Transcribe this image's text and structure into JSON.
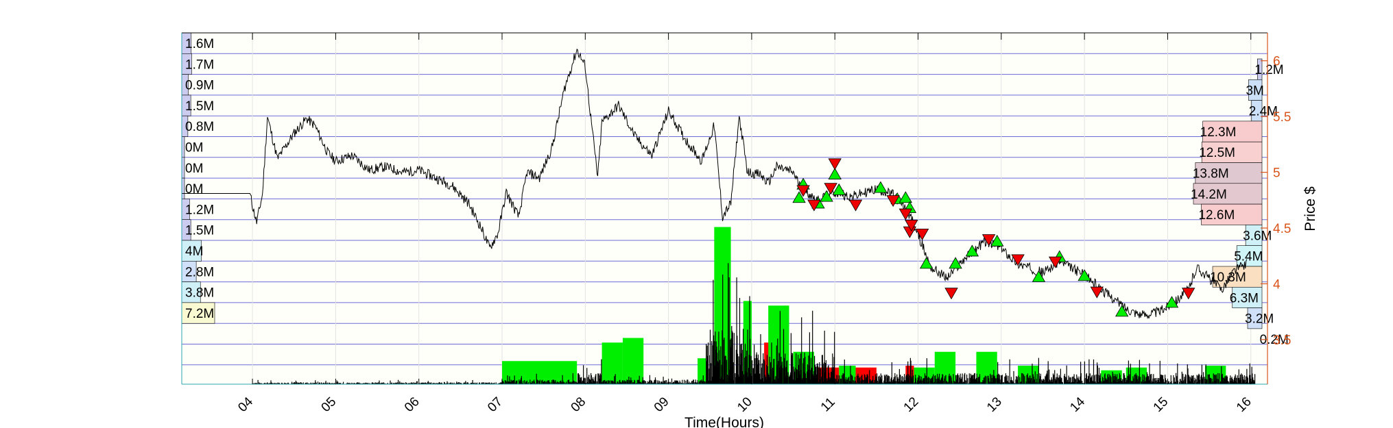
{
  "chart_data": {
    "type": "line",
    "xlabel": "Time(Hours)",
    "ylabel": "Price $",
    "x_ticks": [
      "04",
      "05",
      "06",
      "07",
      "08",
      "09",
      "10",
      "11",
      "12",
      "13",
      "14",
      "15",
      "16"
    ],
    "x_range": [
      3.15,
      16.2
    ],
    "ylim": [
      3.1,
      6.25
    ],
    "y_ticks": [
      3.5,
      4,
      4.5,
      5,
      5.5,
      6
    ],
    "price_axis_color": "#d95319",
    "grid": true,
    "price_series": [
      [
        3.15,
        4.81
      ],
      [
        3.97,
        4.81
      ],
      [
        4.0,
        4.7
      ],
      [
        4.05,
        4.55
      ],
      [
        4.12,
        4.8
      ],
      [
        4.18,
        5.5
      ],
      [
        4.3,
        5.12
      ],
      [
        4.5,
        5.35
      ],
      [
        4.65,
        5.48
      ],
      [
        4.75,
        5.42
      ],
      [
        4.9,
        5.18
      ],
      [
        5.0,
        5.1
      ],
      [
        5.2,
        5.15
      ],
      [
        5.4,
        5.02
      ],
      [
        5.6,
        5.05
      ],
      [
        5.8,
        5.0
      ],
      [
        6.0,
        5.02
      ],
      [
        6.2,
        4.95
      ],
      [
        6.4,
        4.88
      ],
      [
        6.6,
        4.72
      ],
      [
        6.75,
        4.5
      ],
      [
        6.85,
        4.32
      ],
      [
        6.95,
        4.45
      ],
      [
        7.05,
        4.82
      ],
      [
        7.2,
        4.6
      ],
      [
        7.3,
        5.0
      ],
      [
        7.45,
        4.95
      ],
      [
        7.6,
        5.22
      ],
      [
        7.75,
        5.75
      ],
      [
        7.9,
        6.1
      ],
      [
        8.0,
        5.95
      ],
      [
        8.05,
        5.6
      ],
      [
        8.15,
        4.95
      ],
      [
        8.2,
        5.45
      ],
      [
        8.4,
        5.6
      ],
      [
        8.6,
        5.32
      ],
      [
        8.8,
        5.15
      ],
      [
        9.0,
        5.55
      ],
      [
        9.2,
        5.3
      ],
      [
        9.4,
        5.1
      ],
      [
        9.55,
        5.42
      ],
      [
        9.65,
        4.6
      ],
      [
        9.75,
        4.72
      ],
      [
        9.85,
        5.5
      ],
      [
        9.95,
        5.0
      ],
      [
        10.1,
        4.98
      ],
      [
        10.2,
        4.9
      ],
      [
        10.3,
        5.05
      ],
      [
        10.5,
        5.0
      ],
      [
        10.6,
        4.85
      ],
      [
        10.8,
        4.75
      ],
      [
        11.0,
        4.82
      ],
      [
        11.2,
        4.78
      ],
      [
        11.5,
        4.85
      ],
      [
        11.7,
        4.8
      ],
      [
        11.9,
        4.62
      ],
      [
        12.05,
        4.35
      ],
      [
        12.15,
        4.15
      ],
      [
        12.35,
        4.05
      ],
      [
        12.55,
        4.22
      ],
      [
        12.8,
        4.38
      ],
      [
        13.0,
        4.32
      ],
      [
        13.2,
        4.18
      ],
      [
        13.5,
        4.1
      ],
      [
        13.7,
        4.2
      ],
      [
        14.0,
        4.08
      ],
      [
        14.2,
        3.95
      ],
      [
        14.5,
        3.78
      ],
      [
        14.7,
        3.72
      ],
      [
        14.9,
        3.75
      ],
      [
        15.1,
        3.85
      ],
      [
        15.25,
        3.95
      ],
      [
        15.35,
        4.15
      ],
      [
        15.5,
        4.05
      ],
      [
        15.65,
        3.95
      ],
      [
        15.8,
        4.12
      ],
      [
        15.95,
        4.18
      ]
    ],
    "trade_volume_bars": [
      {
        "x0": 7.0,
        "x1": 7.9,
        "volume": 0.25,
        "color": "#00ee00"
      },
      {
        "x0": 8.2,
        "x1": 8.45,
        "volume": 0.45,
        "color": "#00ee00"
      },
      {
        "x0": 8.45,
        "x1": 8.7,
        "volume": 0.5,
        "color": "#00ee00"
      },
      {
        "x0": 9.35,
        "x1": 9.45,
        "volume": 0.28,
        "color": "#00ee00"
      },
      {
        "x0": 9.55,
        "x1": 9.75,
        "volume": 1.7,
        "color": "#00ee00"
      },
      {
        "x0": 9.9,
        "x1": 10.0,
        "volume": 0.9,
        "color": "#00ee00"
      },
      {
        "x0": 10.15,
        "x1": 10.25,
        "volume": 0.45,
        "color": "#ff0000"
      },
      {
        "x0": 10.2,
        "x1": 10.45,
        "volume": 0.85,
        "color": "#00ee00"
      },
      {
        "x0": 10.5,
        "x1": 10.75,
        "volume": 0.35,
        "color": "#00ee00"
      },
      {
        "x0": 10.8,
        "x1": 11.05,
        "volume": 0.18,
        "color": "#ff0000"
      },
      {
        "x0": 11.05,
        "x1": 11.25,
        "volume": 0.2,
        "color": "#00ee00"
      },
      {
        "x0": 11.25,
        "x1": 11.5,
        "volume": 0.18,
        "color": "#ff0000"
      },
      {
        "x0": 11.85,
        "x1": 11.95,
        "volume": 0.2,
        "color": "#ff0000"
      },
      {
        "x0": 11.95,
        "x1": 12.2,
        "volume": 0.18,
        "color": "#00ee00"
      },
      {
        "x0": 12.2,
        "x1": 12.45,
        "volume": 0.35,
        "color": "#00ee00"
      },
      {
        "x0": 12.7,
        "x1": 12.95,
        "volume": 0.35,
        "color": "#00ee00"
      },
      {
        "x0": 13.2,
        "x1": 13.45,
        "volume": 0.2,
        "color": "#00ee00"
      },
      {
        "x0": 14.2,
        "x1": 14.45,
        "volume": 0.15,
        "color": "#00ee00"
      },
      {
        "x0": 14.5,
        "x1": 14.75,
        "volume": 0.18,
        "color": "#00ee00"
      },
      {
        "x0": 15.45,
        "x1": 15.7,
        "volume": 0.2,
        "color": "#00ee00"
      }
    ],
    "buy_markers": [
      [
        10.57,
        4.77
      ],
      [
        10.62,
        4.89
      ],
      [
        10.8,
        4.72
      ],
      [
        10.9,
        4.78
      ],
      [
        11.0,
        4.98
      ],
      [
        11.05,
        4.84
      ],
      [
        11.55,
        4.86
      ],
      [
        11.75,
        4.76
      ],
      [
        11.85,
        4.77
      ],
      [
        11.9,
        4.68
      ],
      [
        12.1,
        4.18
      ],
      [
        12.45,
        4.18
      ],
      [
        12.65,
        4.29
      ],
      [
        12.95,
        4.38
      ],
      [
        13.45,
        4.06
      ],
      [
        13.7,
        4.24
      ],
      [
        14.0,
        4.07
      ],
      [
        14.45,
        3.75
      ],
      [
        15.05,
        3.83
      ]
    ],
    "sell_markers": [
      [
        10.62,
        4.84
      ],
      [
        10.75,
        4.71
      ],
      [
        10.95,
        4.86
      ],
      [
        11.0,
        5.08
      ],
      [
        11.25,
        4.71
      ],
      [
        11.7,
        4.75
      ],
      [
        11.85,
        4.63
      ],
      [
        11.9,
        4.47
      ],
      [
        11.92,
        4.53
      ],
      [
        12.05,
        4.45
      ],
      [
        12.4,
        3.92
      ],
      [
        12.85,
        4.4
      ],
      [
        13.2,
        4.22
      ],
      [
        13.65,
        4.2
      ],
      [
        14.15,
        3.93
      ],
      [
        15.25,
        3.92
      ]
    ],
    "left_profile_labels": [
      "1.6M",
      "1.7M",
      "0.9M",
      "1.5M",
      "0.8M",
      "0M",
      "0M",
      "0M",
      "1.2M",
      "1.5M",
      "4M",
      "2.8M",
      "3.8M",
      "7.2M"
    ],
    "left_profile_values": [
      1.6,
      1.7,
      0.9,
      1.5,
      0.8,
      0,
      0,
      0,
      1.2,
      1.5,
      4,
      2.8,
      3.8,
      7.2
    ],
    "left_profile_colors": [
      "#ccccf0",
      "#ccccf0",
      "#ccccf0",
      "#ccccf0",
      "#ccccf0",
      "#ccccf0",
      "#ccccf0",
      "#ccccf0",
      "#ccccf0",
      "#ccccf0",
      "#d0f0f8",
      "#d0e0f8",
      "#d0f0f8",
      "#fafad2"
    ],
    "right_profile_labels": [
      "1.2M",
      "3M",
      "2.4M",
      "12.3M",
      "12.5M",
      "13.8M",
      "14.2M",
      "12.6M",
      "3.6M",
      "5.4M",
      "10.3M",
      "6.3M",
      "3.2M",
      "0.2M"
    ],
    "right_profile_values": [
      1.2,
      3,
      2.4,
      12.3,
      12.5,
      13.8,
      14.2,
      12.6,
      3.6,
      5.4,
      10.3,
      6.3,
      3.2,
      0.2
    ],
    "right_profile_colors": [
      "#ccccf0",
      "#cce0f8",
      "#cce0f8",
      "#f8cccc",
      "#f8d0d0",
      "#e0c8d0",
      "#e4c8d0",
      "#f8cccc",
      "#d0f0f8",
      "#cff5f8",
      "#fae0c0",
      "#d0f0f8",
      "#d0e0f8",
      "#ccccf0"
    ]
  }
}
